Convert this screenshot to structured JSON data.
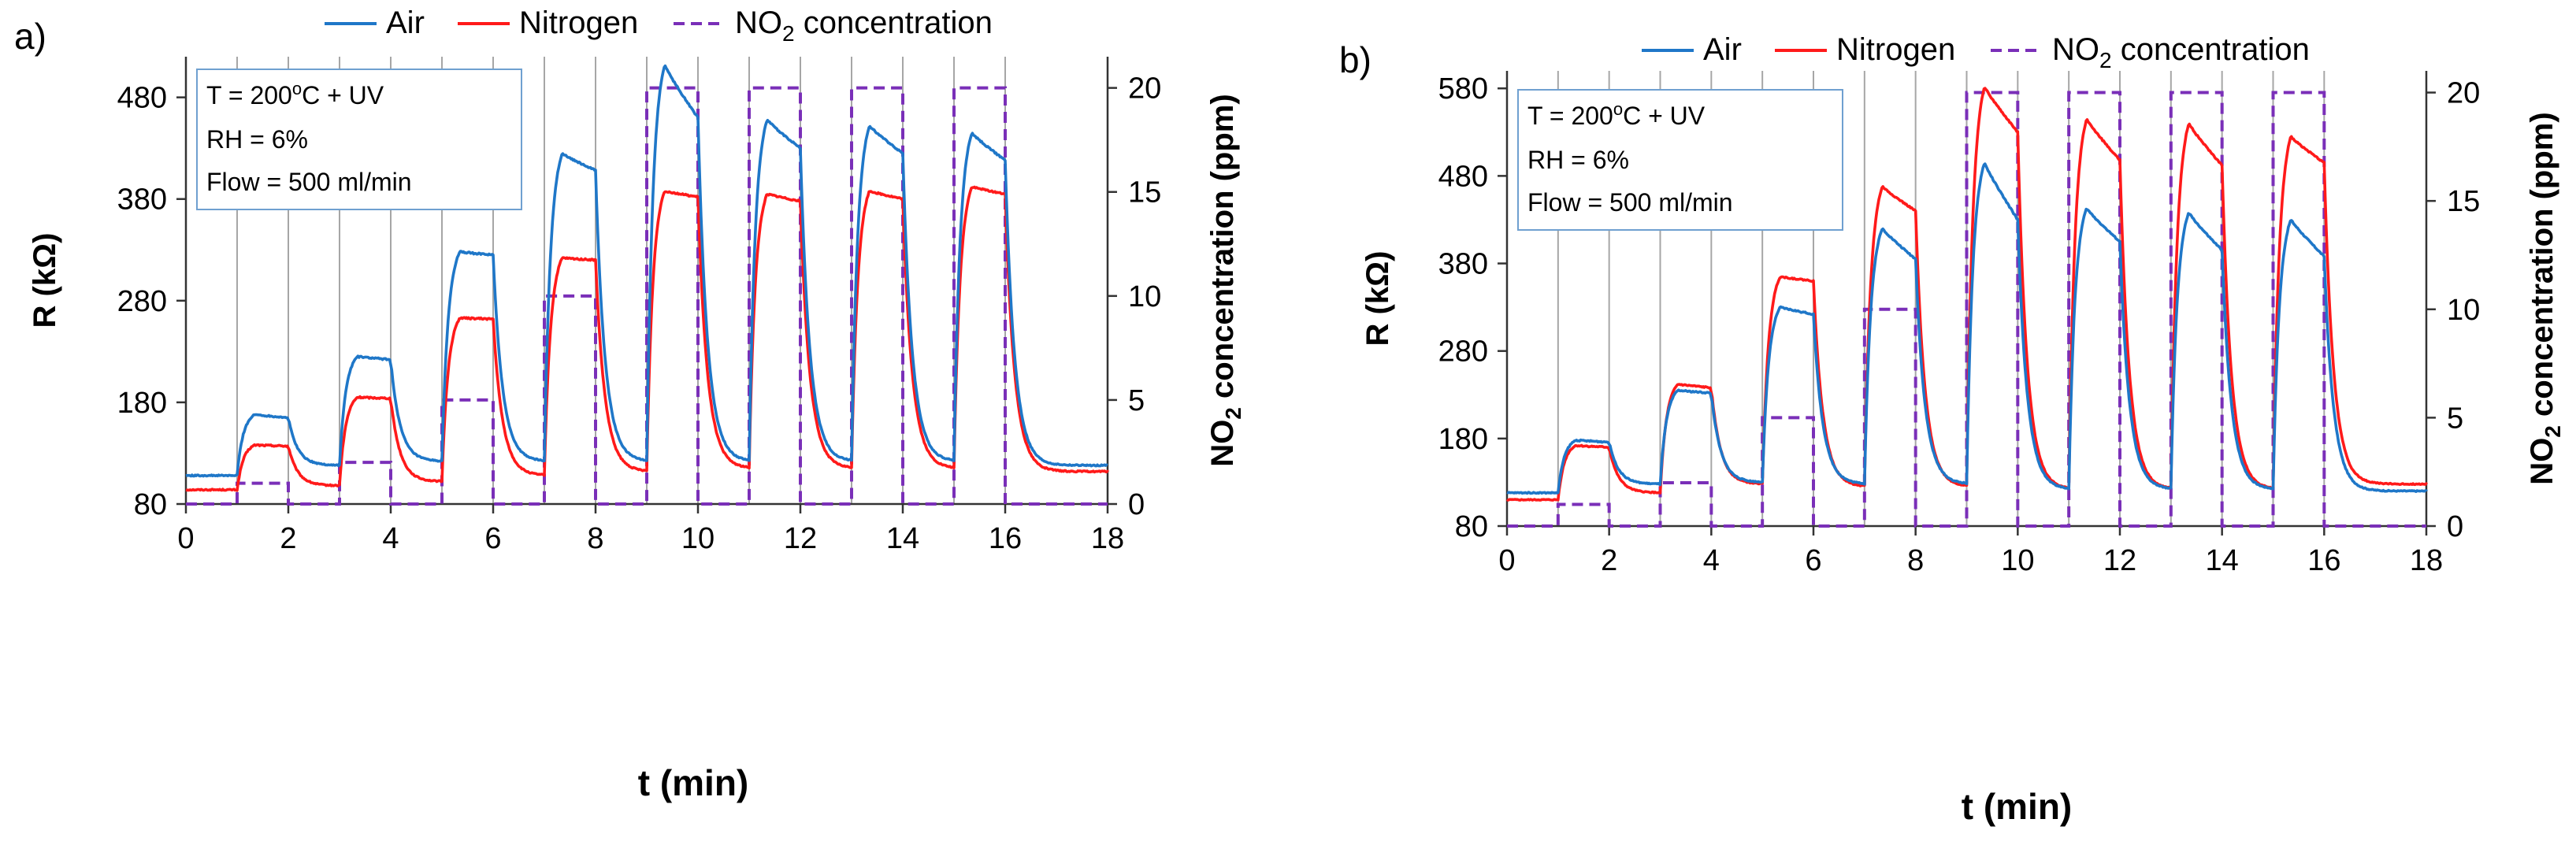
{
  "colors": {
    "air": "#1f77c8",
    "nitrogen": "#ff1a1a",
    "no2": "#7a2fb8",
    "grid": "#a6a6a6",
    "axis": "#333333",
    "annotation_border": "#6fa0d0"
  },
  "chart_data": [
    {
      "panel_label": "a)",
      "type": "line",
      "xlabel": "t (min)",
      "ylabel": "R (kΩ)",
      "y2label_main": "NO",
      "y2label_sub": "2",
      "y2label_rest": " concentration (ppm)",
      "xlim": [
        0,
        18
      ],
      "ylim": [
        80,
        520
      ],
      "y2lim": [
        0,
        21.5
      ],
      "xticks": [
        0,
        2,
        4,
        6,
        8,
        10,
        12,
        14,
        16,
        18
      ],
      "yticks": [
        80,
        180,
        280,
        380,
        480
      ],
      "y2ticks": [
        0,
        5,
        10,
        15,
        20
      ],
      "vgrid": [
        1,
        2,
        3,
        4,
        5,
        6,
        7,
        8,
        9,
        10,
        11,
        12,
        13,
        14,
        15,
        16
      ],
      "legend": [
        {
          "key": "air",
          "label": "Air"
        },
        {
          "key": "nitrogen",
          "label": "Nitrogen"
        },
        {
          "key": "no2",
          "label_main": "NO",
          "label_sub": "2",
          "label_rest": " concentration"
        }
      ],
      "annotation": {
        "line1_pre": "T = 200",
        "line1_sup": "o",
        "line1_post": "C + UV",
        "line2": "RH = 6%",
        "line3": "Flow = 500 ml/min"
      },
      "pulses": [
        {
          "on": 1,
          "off": 2,
          "ppm": 1
        },
        {
          "on": 3,
          "off": 4,
          "ppm": 2
        },
        {
          "on": 5,
          "off": 6,
          "ppm": 5
        },
        {
          "on": 7,
          "off": 8,
          "ppm": 10
        },
        {
          "on": 9,
          "off": 10,
          "ppm": 20
        },
        {
          "on": 11,
          "off": 12,
          "ppm": 20
        },
        {
          "on": 13,
          "off": 14,
          "ppm": 20
        },
        {
          "on": 15,
          "off": 16,
          "ppm": 20
        }
      ],
      "series": [
        {
          "name": "Air",
          "key": "air",
          "initial": 108,
          "final": 118,
          "pulses": [
            {
              "base": 110,
              "peak": 168,
              "end": 165
            },
            {
              "base": 118,
              "peak": 225,
              "end": 222
            },
            {
              "base": 122,
              "peak": 328,
              "end": 325
            },
            {
              "base": 122,
              "peak": 425,
              "end": 408
            },
            {
              "base": 122,
              "peak": 512,
              "end": 460
            },
            {
              "base": 122,
              "peak": 458,
              "end": 430
            },
            {
              "base": 122,
              "peak": 452,
              "end": 425
            },
            {
              "base": 122,
              "peak": 445,
              "end": 418
            }
          ]
        },
        {
          "name": "Nitrogen",
          "key": "nitrogen",
          "initial": 94,
          "final": 112,
          "pulses": [
            {
              "base": 92,
              "peak": 138,
              "end": 137
            },
            {
              "base": 98,
              "peak": 185,
              "end": 184
            },
            {
              "base": 102,
              "peak": 263,
              "end": 262
            },
            {
              "base": 108,
              "peak": 322,
              "end": 320
            },
            {
              "base": 112,
              "peak": 388,
              "end": 382
            },
            {
              "base": 115,
              "peak": 385,
              "end": 378
            },
            {
              "base": 115,
              "peak": 388,
              "end": 380
            },
            {
              "base": 115,
              "peak": 392,
              "end": 385
            }
          ]
        }
      ]
    },
    {
      "panel_label": "b)",
      "type": "line",
      "xlabel": "t (min)",
      "ylabel": "R (kΩ)",
      "y2label_main": "NO",
      "y2label_sub": "2",
      "y2label_rest": " concentration (ppm)",
      "xlim": [
        0,
        18
      ],
      "ylim": [
        80,
        600
      ],
      "y2lim": [
        0,
        21
      ],
      "xticks": [
        0,
        2,
        4,
        6,
        8,
        10,
        12,
        14,
        16,
        18
      ],
      "yticks": [
        80,
        180,
        280,
        380,
        480,
        580
      ],
      "y2ticks": [
        0,
        5,
        10,
        15,
        20
      ],
      "vgrid": [
        1,
        2,
        3,
        4,
        5,
        6,
        7,
        8,
        9,
        10,
        11,
        12,
        13,
        14,
        15,
        16
      ],
      "legend": [
        {
          "key": "air",
          "label": "Air"
        },
        {
          "key": "nitrogen",
          "label": "Nitrogen"
        },
        {
          "key": "no2",
          "label_main": "NO",
          "label_sub": "2",
          "label_rest": " concentration"
        }
      ],
      "annotation": {
        "line1_pre": "T = 200",
        "line1_sup": "o",
        "line1_post": "C + UV",
        "line2": "RH = 6%",
        "line3": "Flow = 500 ml/min"
      },
      "pulses": [
        {
          "on": 1,
          "off": 2,
          "ppm": 1
        },
        {
          "on": 3,
          "off": 4,
          "ppm": 2
        },
        {
          "on": 5,
          "off": 6,
          "ppm": 5
        },
        {
          "on": 7,
          "off": 8,
          "ppm": 10
        },
        {
          "on": 9,
          "off": 10,
          "ppm": 20
        },
        {
          "on": 11,
          "off": 12,
          "ppm": 20
        },
        {
          "on": 13,
          "off": 14,
          "ppm": 20
        },
        {
          "on": 15,
          "off": 16,
          "ppm": 20
        }
      ],
      "series": [
        {
          "name": "Air",
          "key": "air",
          "initial": 118,
          "final": 120,
          "pulses": [
            {
              "base": 120,
              "peak": 178,
              "end": 176
            },
            {
              "base": 128,
              "peak": 235,
              "end": 232
            },
            {
              "base": 130,
              "peak": 330,
              "end": 322
            },
            {
              "base": 128,
              "peak": 420,
              "end": 385
            },
            {
              "base": 128,
              "peak": 495,
              "end": 430
            },
            {
              "base": 122,
              "peak": 443,
              "end": 405
            },
            {
              "base": 122,
              "peak": 438,
              "end": 395
            },
            {
              "base": 122,
              "peak": 430,
              "end": 388
            }
          ]
        },
        {
          "name": "Nitrogen",
          "key": "nitrogen",
          "initial": 110,
          "final": 128,
          "pulses": [
            {
              "base": 108,
              "peak": 172,
              "end": 170
            },
            {
              "base": 118,
              "peak": 242,
              "end": 238
            },
            {
              "base": 128,
              "peak": 365,
              "end": 360
            },
            {
              "base": 125,
              "peak": 468,
              "end": 440
            },
            {
              "base": 125,
              "peak": 582,
              "end": 530
            },
            {
              "base": 122,
              "peak": 545,
              "end": 498
            },
            {
              "base": 122,
              "peak": 540,
              "end": 492
            },
            {
              "base": 122,
              "peak": 525,
              "end": 495
            }
          ]
        }
      ]
    }
  ]
}
